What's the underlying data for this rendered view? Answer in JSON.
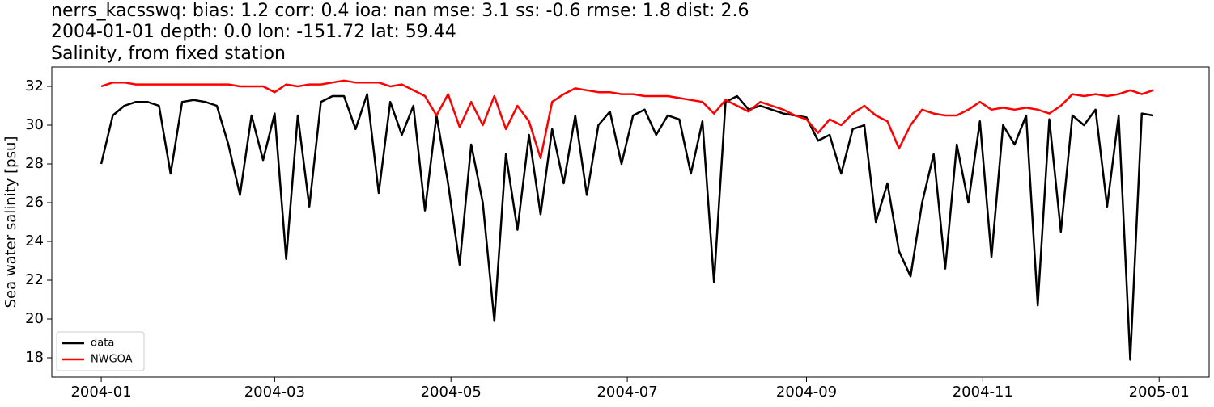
{
  "chart_data": {
    "type": "line",
    "title": "nerrs_kacsswq: bias: 1.2  corr: 0.4  ioa: nan  mse: 3.1  ss: -0.6  rmse: 1.8  dist: 2.6",
    "subtitle": "2004-01-01 depth: 0.0 lon: -151.72 lat: 59.44",
    "description": "Salinity, from fixed station",
    "ylabel": "Sea water salinity [psu]",
    "x": [
      0,
      4,
      8,
      12,
      16,
      20,
      24,
      28,
      32,
      36,
      40,
      44,
      48,
      52,
      56,
      60,
      64,
      68,
      72,
      76,
      80,
      84,
      88,
      92,
      96,
      100,
      104,
      108,
      112,
      116,
      120,
      124,
      128,
      132,
      136,
      140,
      144,
      148,
      152,
      156,
      160,
      164,
      168,
      172,
      176,
      180,
      184,
      188,
      192,
      196,
      200,
      204,
      208,
      212,
      216,
      220,
      224,
      228,
      232,
      236,
      240,
      244,
      248,
      252,
      256,
      260,
      264,
      268,
      272,
      276,
      280,
      284,
      288,
      292,
      296,
      300,
      304,
      308,
      312,
      316,
      320,
      324,
      328,
      332,
      336,
      340,
      344,
      348,
      352,
      356,
      360,
      364
    ],
    "series": [
      {
        "name": "data",
        "color": "#000000",
        "values": [
          28.0,
          30.5,
          31.0,
          31.2,
          31.2,
          31.0,
          27.5,
          31.2,
          31.3,
          31.2,
          31.0,
          29.0,
          26.4,
          30.5,
          28.2,
          30.6,
          23.1,
          30.5,
          25.8,
          31.2,
          31.5,
          31.5,
          29.8,
          31.6,
          26.5,
          31.2,
          29.5,
          31.0,
          25.6,
          30.5,
          27.0,
          22.8,
          29.0,
          26.0,
          19.9,
          28.5,
          24.6,
          29.5,
          25.4,
          29.8,
          27.0,
          30.5,
          26.4,
          30.0,
          30.7,
          28.0,
          30.5,
          30.8,
          29.5,
          30.5,
          30.3,
          27.5,
          30.2,
          21.9,
          31.2,
          31.5,
          30.8,
          31.0,
          30.8,
          30.6,
          30.5,
          30.4,
          29.2,
          29.5,
          27.5,
          29.8,
          30.0,
          25.0,
          27.0,
          23.5,
          22.2,
          26.0,
          28.5,
          22.6,
          29.0,
          26.0,
          30.2,
          23.2,
          30.0,
          29.0,
          30.5,
          20.7,
          30.3,
          24.5,
          30.5,
          30.0,
          30.8,
          25.8,
          30.5,
          17.9,
          30.6,
          30.5
        ]
      },
      {
        "name": "NWGOA",
        "color": "#ff0000",
        "values": [
          32.0,
          32.2,
          32.2,
          32.1,
          32.1,
          32.1,
          32.1,
          32.1,
          32.1,
          32.1,
          32.1,
          32.1,
          32.0,
          32.0,
          32.0,
          31.7,
          32.1,
          32.0,
          32.1,
          32.1,
          32.2,
          32.3,
          32.2,
          32.2,
          32.2,
          32.0,
          32.1,
          31.8,
          31.5,
          30.5,
          31.6,
          29.9,
          31.2,
          30.0,
          31.5,
          29.8,
          31.0,
          30.2,
          28.3,
          31.2,
          31.6,
          31.9,
          31.8,
          31.7,
          31.7,
          31.6,
          31.6,
          31.5,
          31.5,
          31.5,
          31.4,
          31.3,
          31.2,
          30.6,
          31.3,
          31.0,
          30.7,
          31.2,
          31.0,
          30.8,
          30.5,
          30.3,
          29.6,
          30.3,
          30.0,
          30.6,
          31.0,
          30.5,
          30.2,
          28.8,
          30.0,
          30.8,
          30.6,
          30.5,
          30.5,
          30.8,
          31.2,
          30.8,
          30.9,
          30.8,
          30.9,
          30.8,
          30.6,
          31.0,
          31.6,
          31.5,
          31.6,
          31.5,
          31.6,
          31.8,
          31.6,
          31.8
        ]
      }
    ],
    "xlim": [
      -17.1,
      383.3
    ],
    "xticks": [
      {
        "value": 0,
        "label": "2004-01"
      },
      {
        "value": 60,
        "label": "2004-03"
      },
      {
        "value": 121,
        "label": "2004-05"
      },
      {
        "value": 182,
        "label": "2004-07"
      },
      {
        "value": 244,
        "label": "2004-09"
      },
      {
        "value": 305,
        "label": "2004-11"
      },
      {
        "value": 366,
        "label": "2005-01"
      }
    ],
    "ylim": [
      17,
      33
    ],
    "yticks": [
      18,
      20,
      22,
      24,
      26,
      28,
      30,
      32
    ],
    "grid": false,
    "legend": "lower left"
  }
}
